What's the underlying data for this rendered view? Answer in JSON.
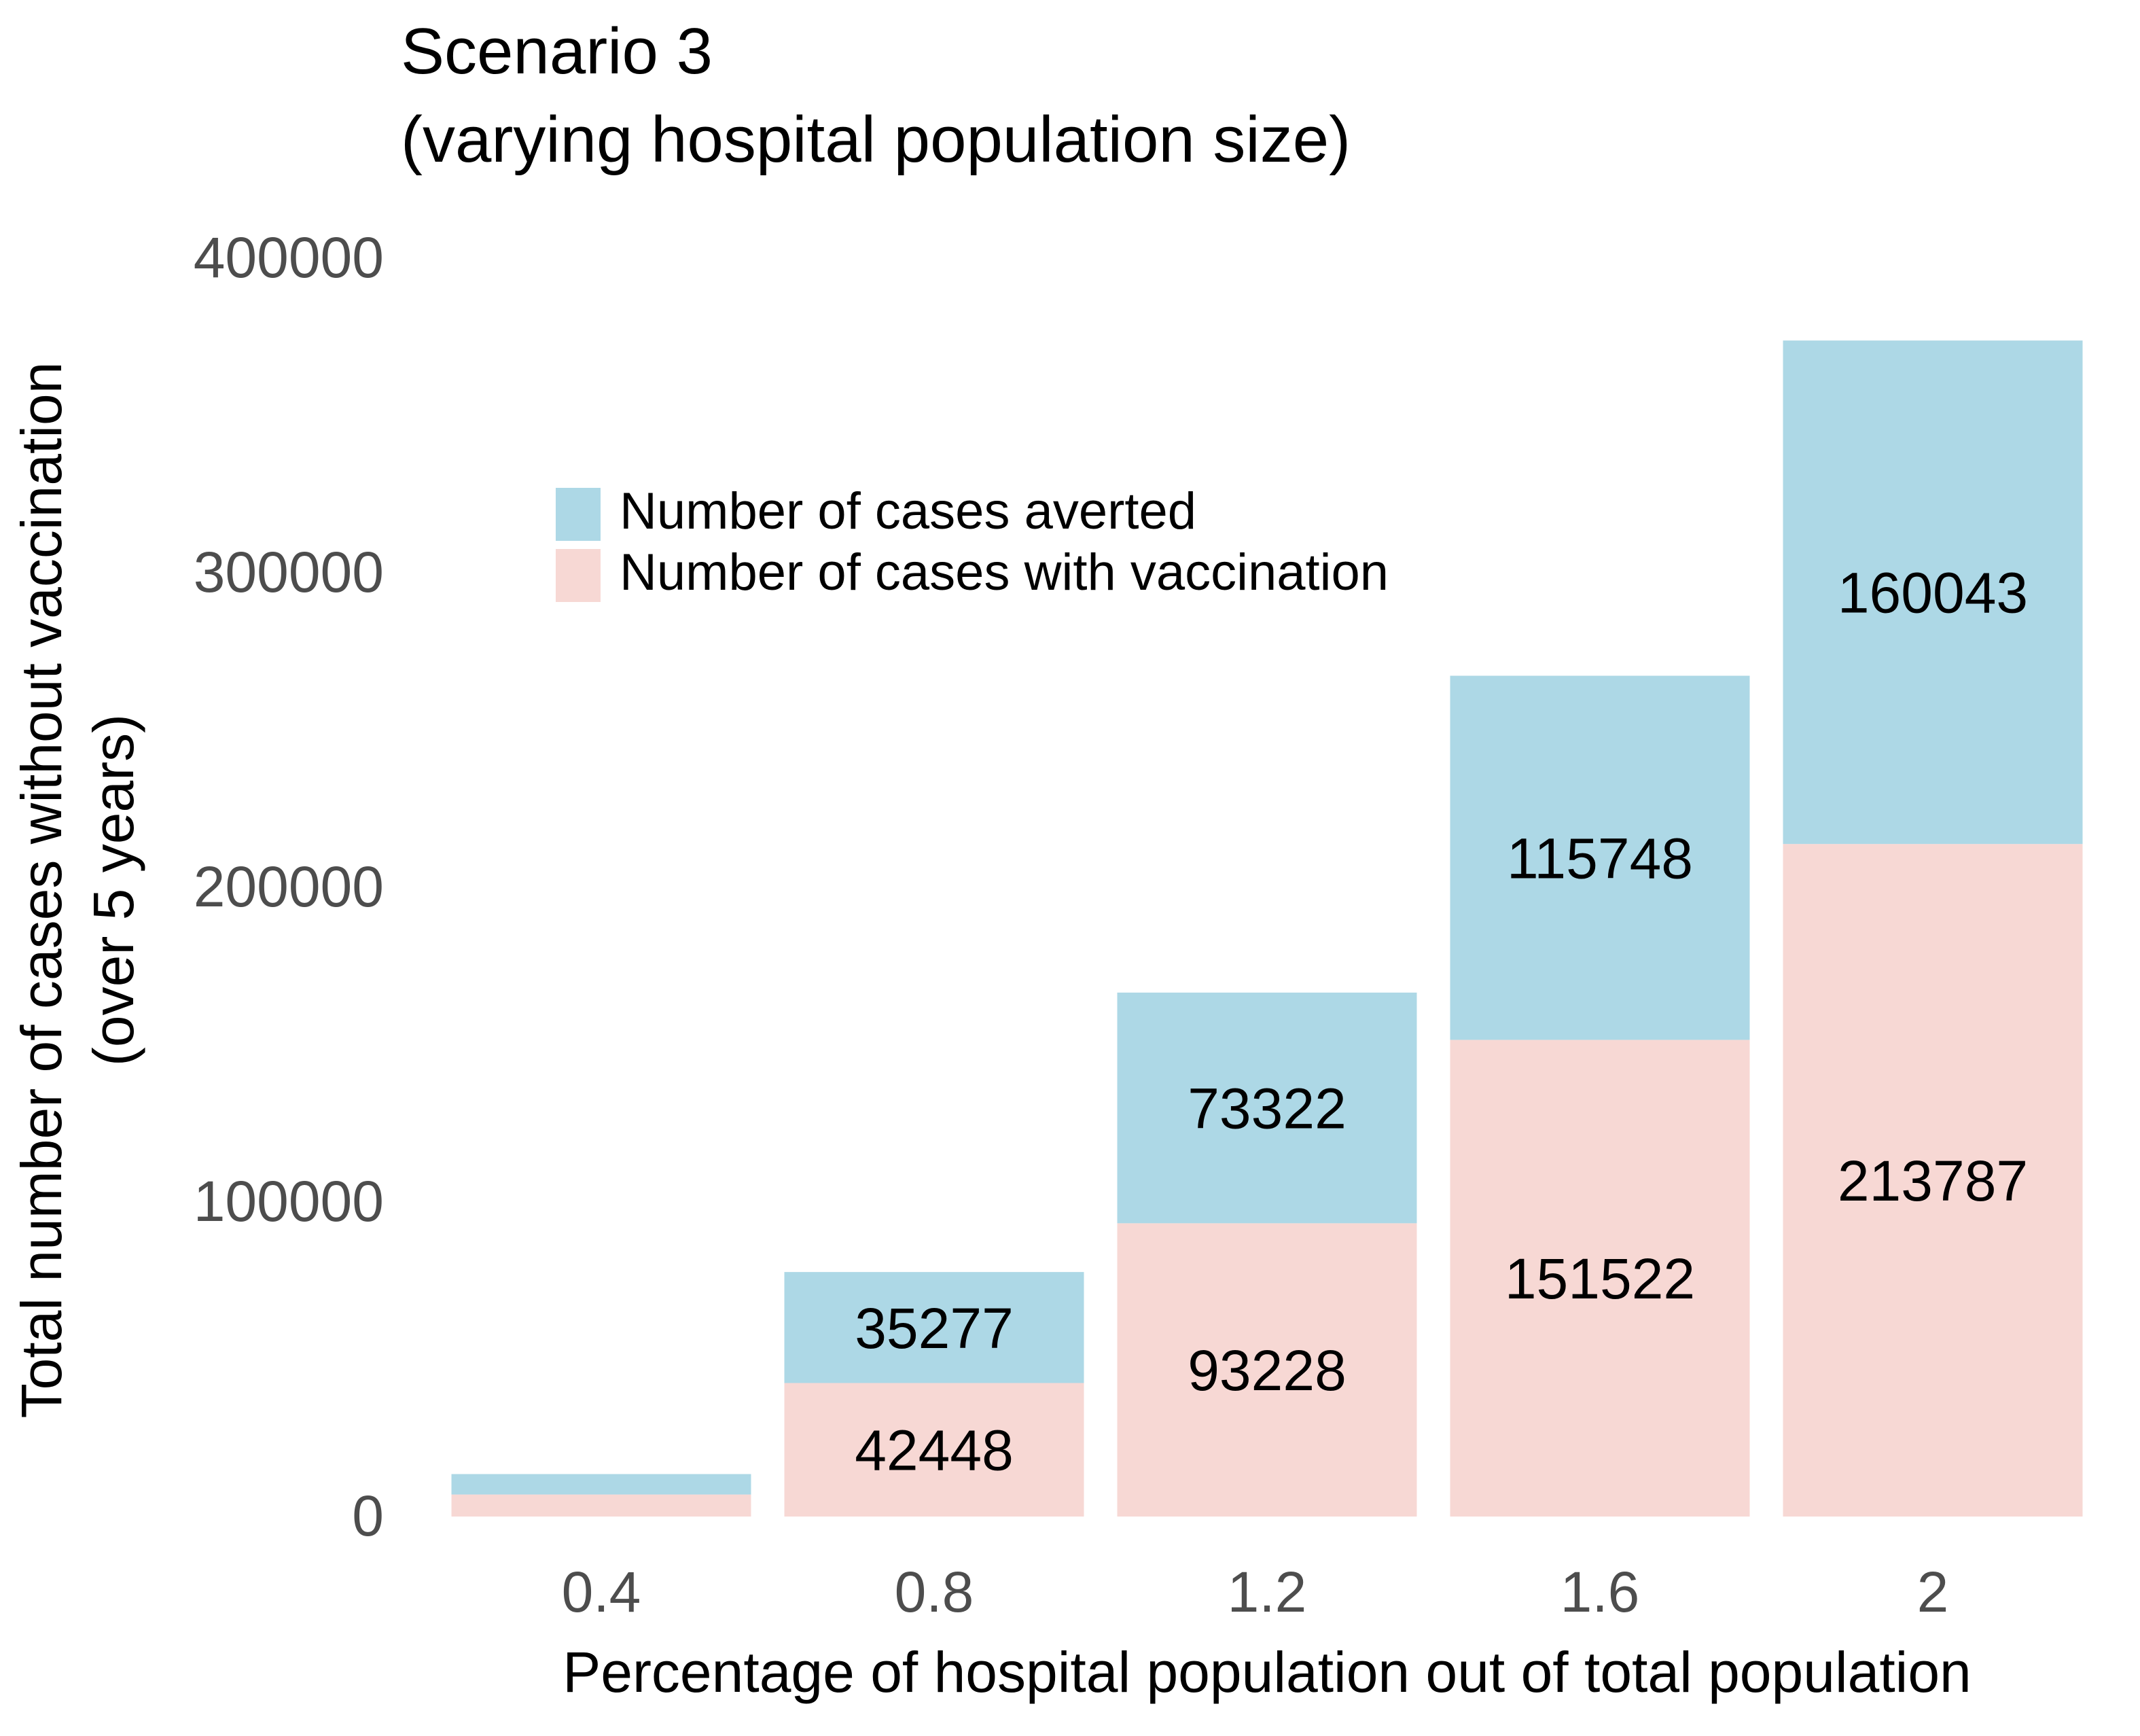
{
  "chart_data": {
    "type": "bar",
    "stacked": true,
    "title": "Scenario 3",
    "subtitle": "(varying hospital population size)",
    "xlabel": "Percentage of hospital population out of total population",
    "ylabel_line1": "Total number of cases without vaccination",
    "ylabel_line2": "(over 5 years)",
    "categories": [
      "0.4",
      "0.8",
      "1.2",
      "1.6",
      "2"
    ],
    "ylim": [
      0,
      400000
    ],
    "yticks": [
      "0",
      "100000",
      "200000",
      "300000",
      "400000"
    ],
    "grid": false,
    "legend_position": "upper-left inside plot",
    "series": [
      {
        "name": "Number of cases with vaccination",
        "color": "#f7d8d4",
        "values": [
          7000,
          42448,
          93228,
          151522,
          213787
        ],
        "labels": [
          "",
          "42448",
          "93228",
          "151522",
          "213787"
        ]
      },
      {
        "name": "Number of cases averted",
        "color": "#add8e6",
        "values": [
          6500,
          35277,
          73322,
          115748,
          160043
        ],
        "labels": [
          "",
          "35277",
          "73322",
          "115748",
          "160043"
        ]
      }
    ],
    "legend": [
      {
        "label": "Number of cases averted",
        "color": "#add8e6"
      },
      {
        "label": "Number of cases with vaccination",
        "color": "#f7d8d4"
      }
    ]
  }
}
